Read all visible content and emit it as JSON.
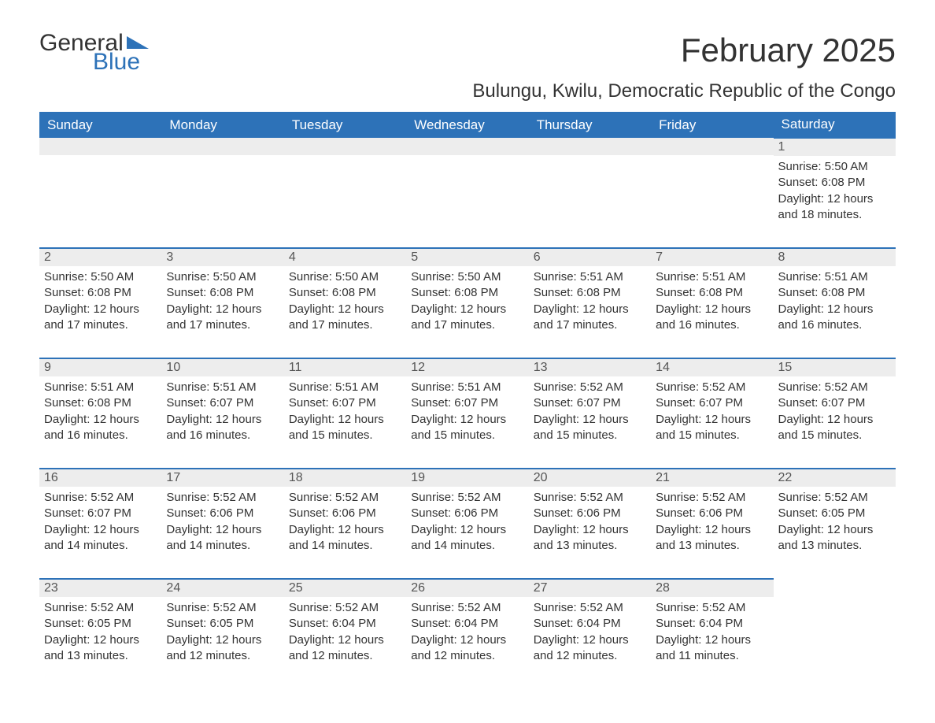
{
  "logo": {
    "word1": "General",
    "word2": "Blue",
    "shape_color": "#2d72b8"
  },
  "title": "February 2025",
  "location": "Bulungu, Kwilu, Democratic Republic of the Congo",
  "colors": {
    "header_bg": "#2d72b8",
    "header_text": "#ffffff",
    "daynum_bg": "#ededed",
    "border": "#2d72b8",
    "body_text": "#333333"
  },
  "day_headers": [
    "Sunday",
    "Monday",
    "Tuesday",
    "Wednesday",
    "Thursday",
    "Friday",
    "Saturday"
  ],
  "first_weekday_index": 6,
  "days_in_month": 28,
  "days": {
    "1": {
      "sunrise": "5:50 AM",
      "sunset": "6:08 PM",
      "daylight": "12 hours and 18 minutes."
    },
    "2": {
      "sunrise": "5:50 AM",
      "sunset": "6:08 PM",
      "daylight": "12 hours and 17 minutes."
    },
    "3": {
      "sunrise": "5:50 AM",
      "sunset": "6:08 PM",
      "daylight": "12 hours and 17 minutes."
    },
    "4": {
      "sunrise": "5:50 AM",
      "sunset": "6:08 PM",
      "daylight": "12 hours and 17 minutes."
    },
    "5": {
      "sunrise": "5:50 AM",
      "sunset": "6:08 PM",
      "daylight": "12 hours and 17 minutes."
    },
    "6": {
      "sunrise": "5:51 AM",
      "sunset": "6:08 PM",
      "daylight": "12 hours and 17 minutes."
    },
    "7": {
      "sunrise": "5:51 AM",
      "sunset": "6:08 PM",
      "daylight": "12 hours and 16 minutes."
    },
    "8": {
      "sunrise": "5:51 AM",
      "sunset": "6:08 PM",
      "daylight": "12 hours and 16 minutes."
    },
    "9": {
      "sunrise": "5:51 AM",
      "sunset": "6:08 PM",
      "daylight": "12 hours and 16 minutes."
    },
    "10": {
      "sunrise": "5:51 AM",
      "sunset": "6:07 PM",
      "daylight": "12 hours and 16 minutes."
    },
    "11": {
      "sunrise": "5:51 AM",
      "sunset": "6:07 PM",
      "daylight": "12 hours and 15 minutes."
    },
    "12": {
      "sunrise": "5:51 AM",
      "sunset": "6:07 PM",
      "daylight": "12 hours and 15 minutes."
    },
    "13": {
      "sunrise": "5:52 AM",
      "sunset": "6:07 PM",
      "daylight": "12 hours and 15 minutes."
    },
    "14": {
      "sunrise": "5:52 AM",
      "sunset": "6:07 PM",
      "daylight": "12 hours and 15 minutes."
    },
    "15": {
      "sunrise": "5:52 AM",
      "sunset": "6:07 PM",
      "daylight": "12 hours and 15 minutes."
    },
    "16": {
      "sunrise": "5:52 AM",
      "sunset": "6:07 PM",
      "daylight": "12 hours and 14 minutes."
    },
    "17": {
      "sunrise": "5:52 AM",
      "sunset": "6:06 PM",
      "daylight": "12 hours and 14 minutes."
    },
    "18": {
      "sunrise": "5:52 AM",
      "sunset": "6:06 PM",
      "daylight": "12 hours and 14 minutes."
    },
    "19": {
      "sunrise": "5:52 AM",
      "sunset": "6:06 PM",
      "daylight": "12 hours and 14 minutes."
    },
    "20": {
      "sunrise": "5:52 AM",
      "sunset": "6:06 PM",
      "daylight": "12 hours and 13 minutes."
    },
    "21": {
      "sunrise": "5:52 AM",
      "sunset": "6:06 PM",
      "daylight": "12 hours and 13 minutes."
    },
    "22": {
      "sunrise": "5:52 AM",
      "sunset": "6:05 PM",
      "daylight": "12 hours and 13 minutes."
    },
    "23": {
      "sunrise": "5:52 AM",
      "sunset": "6:05 PM",
      "daylight": "12 hours and 13 minutes."
    },
    "24": {
      "sunrise": "5:52 AM",
      "sunset": "6:05 PM",
      "daylight": "12 hours and 12 minutes."
    },
    "25": {
      "sunrise": "5:52 AM",
      "sunset": "6:04 PM",
      "daylight": "12 hours and 12 minutes."
    },
    "26": {
      "sunrise": "5:52 AM",
      "sunset": "6:04 PM",
      "daylight": "12 hours and 12 minutes."
    },
    "27": {
      "sunrise": "5:52 AM",
      "sunset": "6:04 PM",
      "daylight": "12 hours and 12 minutes."
    },
    "28": {
      "sunrise": "5:52 AM",
      "sunset": "6:04 PM",
      "daylight": "12 hours and 11 minutes."
    }
  },
  "labels": {
    "sunrise": "Sunrise: ",
    "sunset": "Sunset: ",
    "daylight": "Daylight: "
  }
}
